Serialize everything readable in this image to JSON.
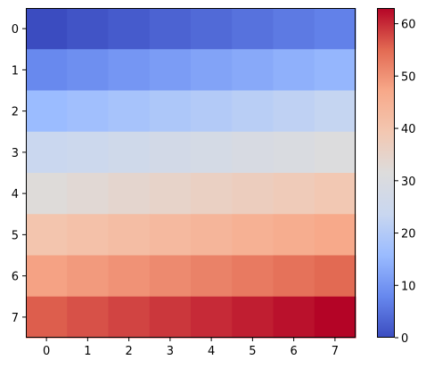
{
  "chart_data": {
    "type": "heatmap",
    "title": "",
    "xlabel": "",
    "ylabel": "",
    "x_categories": [
      "0",
      "1",
      "2",
      "3",
      "4",
      "5",
      "6",
      "7"
    ],
    "y_categories": [
      "0",
      "1",
      "2",
      "3",
      "4",
      "5",
      "6",
      "7"
    ],
    "values": [
      [
        0,
        1,
        2,
        3,
        4,
        5,
        6,
        7
      ],
      [
        8,
        9,
        10,
        11,
        12,
        13,
        14,
        15
      ],
      [
        16,
        17,
        18,
        19,
        20,
        21,
        22,
        23
      ],
      [
        24,
        25,
        26,
        27,
        28,
        29,
        30,
        31
      ],
      [
        32,
        33,
        34,
        35,
        36,
        37,
        38,
        39
      ],
      [
        40,
        41,
        42,
        43,
        44,
        45,
        46,
        47
      ],
      [
        48,
        49,
        50,
        51,
        52,
        53,
        54,
        55
      ],
      [
        56,
        57,
        58,
        59,
        60,
        61,
        62,
        63
      ]
    ],
    "colormap": "coolwarm",
    "colormap_stops": [
      "#3b4cc0",
      "#6788ee",
      "#9abbff",
      "#c9d7f0",
      "#dddcdc",
      "#f3c7b1",
      "#f7a889",
      "#e26952",
      "#b40426"
    ],
    "vmin": 0,
    "vmax": 63,
    "colorbar": {
      "position": "right",
      "ticks": [
        "0",
        "10",
        "20",
        "30",
        "40",
        "50",
        "60"
      ]
    },
    "grid": false
  }
}
